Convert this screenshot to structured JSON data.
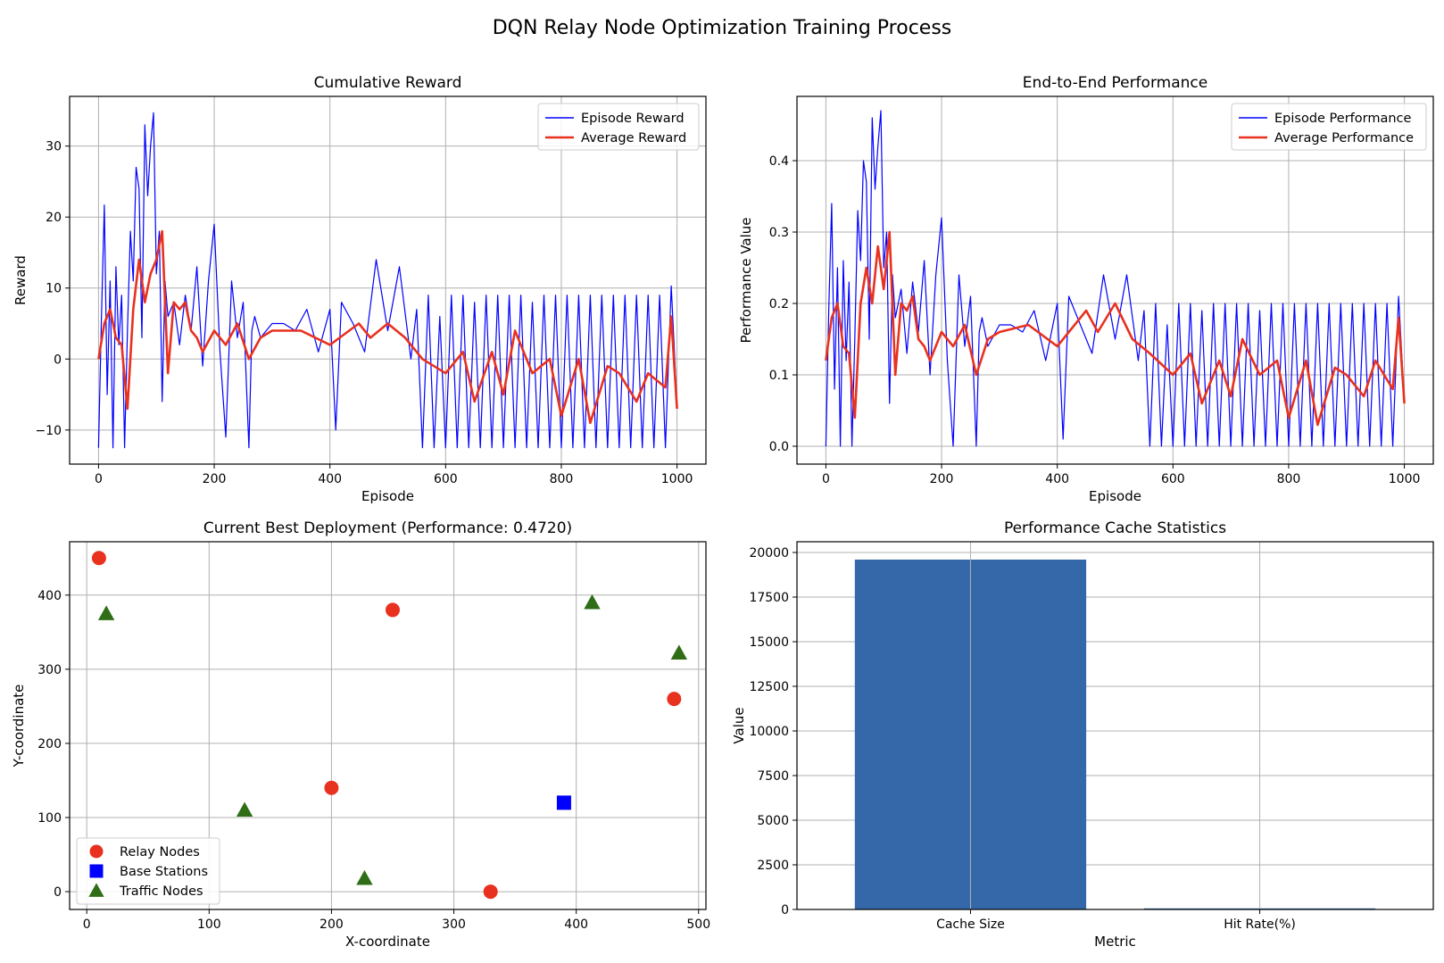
{
  "figure_title": "DQN Relay Node Optimization Training Process",
  "colors": {
    "episode": "#0000ff",
    "average": "#e8311f",
    "relay": "#e8311f",
    "base": "#0000ff",
    "traffic": "#2f6e17",
    "bar": "#3468a8"
  },
  "chart_data": [
    {
      "type": "line",
      "title": "Cumulative Reward",
      "xlabel": "Episode",
      "ylabel": "Reward",
      "xlim": [
        -50,
        1050
      ],
      "ylim": [
        -14.8,
        37
      ],
      "xticks": [
        0,
        200,
        400,
        600,
        800,
        1000
      ],
      "yticks": [
        -10,
        0,
        10,
        20,
        30
      ],
      "ytick_labels": [
        "−10",
        "0",
        "10",
        "20",
        "30"
      ],
      "grid": true,
      "legend": "top-right",
      "series": [
        {
          "name": "Episode Reward",
          "x": [
            0,
            5,
            10,
            15,
            20,
            25,
            30,
            35,
            40,
            45,
            50,
            55,
            60,
            65,
            70,
            75,
            80,
            85,
            90,
            95,
            100,
            105,
            110,
            115,
            120,
            130,
            140,
            150,
            160,
            170,
            180,
            190,
            200,
            210,
            220,
            230,
            240,
            250,
            260,
            265,
            270,
            280,
            300,
            320,
            340,
            360,
            380,
            400,
            410,
            420,
            440,
            460,
            480,
            500,
            520,
            540,
            550,
            560,
            570,
            580,
            590,
            600,
            610,
            620,
            630,
            640,
            650,
            660,
            670,
            680,
            690,
            700,
            710,
            720,
            730,
            740,
            750,
            760,
            770,
            780,
            790,
            800,
            810,
            820,
            830,
            840,
            850,
            860,
            870,
            880,
            890,
            900,
            910,
            920,
            930,
            940,
            950,
            960,
            970,
            980,
            990,
            1000
          ],
          "values": [
            -12.5,
            6,
            21.7,
            -5,
            11,
            -12.5,
            13,
            2,
            9,
            -12.5,
            4,
            18,
            11,
            27,
            24,
            3,
            33,
            23,
            30,
            34.7,
            12,
            18,
            -6,
            11,
            6,
            8,
            2,
            9,
            4,
            13,
            -1,
            11,
            19,
            1,
            -11,
            11,
            3,
            8,
            -12.5,
            4,
            6,
            3,
            5,
            5,
            4,
            7,
            1,
            7,
            -10,
            8,
            5,
            1,
            14,
            4,
            13,
            0,
            7,
            -12.5,
            9,
            -12.5,
            6,
            -12.5,
            9,
            -12.5,
            9,
            -12.5,
            8,
            -12.5,
            9,
            -12.5,
            9,
            -12.5,
            9,
            -12.5,
            9,
            -12.5,
            8,
            -12.5,
            9,
            -12.5,
            9,
            -12.5,
            9,
            -12.5,
            9,
            -12.5,
            9,
            -12.5,
            9,
            -12.5,
            9,
            -12.5,
            9,
            -12.5,
            9,
            -12.5,
            9,
            -12.5,
            9,
            -12.5,
            10.3,
            -6.5
          ]
        },
        {
          "name": "Average Reward",
          "x": [
            0,
            10,
            20,
            30,
            40,
            50,
            60,
            70,
            80,
            90,
            100,
            110,
            120,
            130,
            140,
            150,
            160,
            170,
            180,
            200,
            220,
            240,
            260,
            280,
            300,
            350,
            400,
            450,
            470,
            500,
            530,
            560,
            600,
            630,
            650,
            680,
            700,
            720,
            750,
            780,
            800,
            830,
            850,
            880,
            900,
            930,
            950,
            980,
            990,
            1000
          ],
          "values": [
            0,
            5,
            7,
            3,
            2,
            -7,
            7,
            14,
            8,
            12,
            14,
            18,
            -2,
            8,
            7,
            8,
            4,
            3,
            1,
            4,
            2,
            5,
            0,
            3,
            4,
            4,
            2,
            5,
            3,
            5,
            3,
            0,
            -2,
            1,
            -6,
            1,
            -5,
            4,
            -2,
            0,
            -8,
            0,
            -9,
            -1,
            -2,
            -6,
            -2,
            -4,
            6,
            -7
          ]
        }
      ]
    },
    {
      "type": "line",
      "title": "End-to-End Performance",
      "xlabel": "Episode",
      "ylabel": "Performance Value",
      "xlim": [
        -50,
        1050
      ],
      "ylim": [
        -0.025,
        0.49
      ],
      "xticks": [
        0,
        200,
        400,
        600,
        800,
        1000
      ],
      "yticks": [
        0.0,
        0.1,
        0.2,
        0.3,
        0.4
      ],
      "ytick_labels": [
        "0.0",
        "0.1",
        "0.2",
        "0.3",
        "0.4"
      ],
      "grid": true,
      "legend": "top-right",
      "series": [
        {
          "name": "Episode Performance",
          "x": [
            0,
            5,
            10,
            15,
            20,
            25,
            30,
            35,
            40,
            45,
            50,
            55,
            60,
            65,
            70,
            75,
            80,
            85,
            90,
            95,
            100,
            105,
            110,
            115,
            120,
            130,
            140,
            150,
            160,
            170,
            180,
            190,
            200,
            210,
            220,
            230,
            240,
            250,
            260,
            265,
            270,
            280,
            300,
            320,
            340,
            360,
            380,
            400,
            410,
            420,
            440,
            460,
            480,
            500,
            520,
            540,
            550,
            560,
            570,
            580,
            590,
            600,
            610,
            620,
            630,
            640,
            650,
            660,
            670,
            680,
            690,
            700,
            710,
            720,
            730,
            740,
            750,
            760,
            770,
            780,
            790,
            800,
            810,
            820,
            830,
            840,
            850,
            860,
            870,
            880,
            890,
            900,
            910,
            920,
            930,
            940,
            950,
            960,
            970,
            980,
            990,
            1000
          ],
          "values": [
            0.0,
            0.19,
            0.34,
            0.08,
            0.25,
            0.0,
            0.26,
            0.12,
            0.23,
            0.0,
            0.15,
            0.33,
            0.26,
            0.4,
            0.37,
            0.15,
            0.46,
            0.36,
            0.42,
            0.47,
            0.25,
            0.3,
            0.06,
            0.24,
            0.18,
            0.22,
            0.13,
            0.23,
            0.16,
            0.26,
            0.1,
            0.24,
            0.32,
            0.12,
            0.0,
            0.24,
            0.14,
            0.21,
            0.0,
            0.16,
            0.18,
            0.14,
            0.17,
            0.17,
            0.16,
            0.19,
            0.12,
            0.2,
            0.01,
            0.21,
            0.17,
            0.13,
            0.24,
            0.15,
            0.24,
            0.12,
            0.19,
            0.0,
            0.2,
            0.0,
            0.17,
            0.0,
            0.2,
            0.0,
            0.2,
            0.0,
            0.19,
            0.0,
            0.2,
            0.0,
            0.2,
            0.0,
            0.2,
            0.0,
            0.2,
            0.0,
            0.19,
            0.0,
            0.2,
            0.0,
            0.2,
            0.0,
            0.2,
            0.0,
            0.2,
            0.0,
            0.2,
            0.0,
            0.2,
            0.0,
            0.2,
            0.0,
            0.2,
            0.0,
            0.2,
            0.0,
            0.2,
            0.0,
            0.2,
            0.0,
            0.21,
            0.06
          ]
        },
        {
          "name": "Average Performance",
          "x": [
            0,
            10,
            20,
            30,
            40,
            50,
            60,
            70,
            80,
            90,
            100,
            110,
            120,
            130,
            140,
            150,
            160,
            170,
            180,
            200,
            220,
            240,
            260,
            280,
            300,
            350,
            400,
            450,
            470,
            500,
            530,
            560,
            600,
            630,
            650,
            680,
            700,
            720,
            750,
            780,
            800,
            830,
            850,
            880,
            900,
            930,
            950,
            980,
            990,
            1000
          ],
          "values": [
            0.12,
            0.18,
            0.2,
            0.14,
            0.13,
            0.04,
            0.2,
            0.25,
            0.2,
            0.28,
            0.22,
            0.3,
            0.1,
            0.2,
            0.19,
            0.21,
            0.15,
            0.14,
            0.12,
            0.16,
            0.14,
            0.17,
            0.1,
            0.15,
            0.16,
            0.17,
            0.14,
            0.19,
            0.16,
            0.2,
            0.15,
            0.13,
            0.1,
            0.13,
            0.06,
            0.12,
            0.07,
            0.15,
            0.1,
            0.12,
            0.04,
            0.12,
            0.03,
            0.11,
            0.1,
            0.07,
            0.12,
            0.08,
            0.18,
            0.06
          ]
        }
      ]
    },
    {
      "type": "scatter",
      "title": "Current Best Deployment (Performance: 0.4720)",
      "xlabel": "X-coordinate",
      "ylabel": "Y-coordinate",
      "xlim": [
        -14,
        506
      ],
      "ylim": [
        -24,
        472
      ],
      "xticks": [
        0,
        100,
        200,
        300,
        400,
        500
      ],
      "yticks": [
        0,
        100,
        200,
        300,
        400
      ],
      "grid": true,
      "legend": "bottom-left",
      "series": [
        {
          "name": "Relay Nodes",
          "marker": "circle",
          "x": [
            10,
            250,
            480,
            200,
            330
          ],
          "y": [
            450,
            380,
            260,
            140,
            0
          ]
        },
        {
          "name": "Base Stations",
          "marker": "square",
          "x": [
            390
          ],
          "y": [
            120
          ]
        },
        {
          "name": "Traffic Nodes",
          "marker": "triangle",
          "x": [
            16,
            413,
            484,
            129,
            227
          ],
          "y": [
            375,
            390,
            322,
            110,
            18
          ]
        }
      ]
    },
    {
      "type": "bar",
      "title": "Performance Cache Statistics",
      "xlabel": "Metric",
      "ylabel": "Value",
      "categories": [
        "Cache Size",
        "Hit Rate(%)"
      ],
      "values": [
        19600,
        60
      ],
      "ylim": [
        0,
        20600
      ],
      "yticks": [
        0,
        2500,
        5000,
        7500,
        10000,
        12500,
        15000,
        17500,
        20000
      ],
      "grid": true
    }
  ]
}
